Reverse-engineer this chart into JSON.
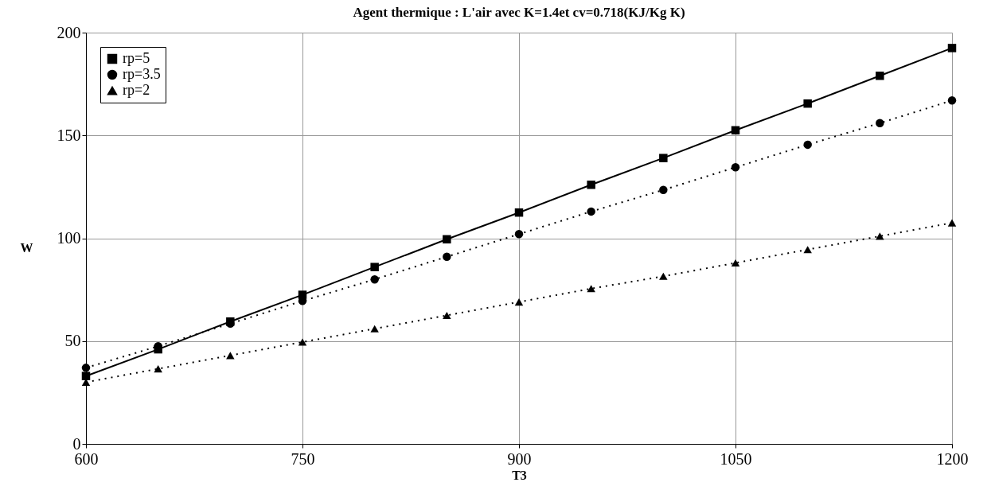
{
  "chart_data": {
    "type": "line",
    "title": "Agent thermique : L'air avec K=1.4et cv=0.718(KJ/Kg K)",
    "xlabel": "T3",
    "ylabel": "W",
    "x": [
      600,
      650,
      700,
      750,
      800,
      850,
      900,
      950,
      1000,
      1050,
      1100,
      1150,
      1200
    ],
    "series": [
      {
        "name": "rp=5",
        "color": "#000000",
        "marker": "square",
        "line_style": "solid",
        "values": [
          33,
          46,
          59.5,
          72.5,
          86,
          99.5,
          112.5,
          126,
          139,
          152.5,
          165.5,
          179,
          192.5
        ]
      },
      {
        "name": "rp=3.5",
        "color": "#000000",
        "marker": "circle",
        "line_style": "dotted",
        "values": [
          37,
          47.5,
          58.5,
          69.5,
          80,
          91,
          102,
          113,
          123.5,
          134.5,
          145.5,
          156,
          167
        ]
      },
      {
        "name": "rp=2",
        "color": "#000000",
        "marker": "triangle",
        "line_style": "dotted",
        "values": [
          30,
          36.5,
          43,
          49.5,
          56,
          62.5,
          69,
          75.5,
          81.5,
          88,
          94.5,
          101,
          107.5
        ]
      }
    ],
    "xlim": [
      600,
      1200
    ],
    "xticks": [
      600,
      750,
      900,
      1050,
      1200
    ],
    "ylim": [
      0,
      200
    ],
    "yticks": [
      0,
      50,
      100,
      150,
      200
    ],
    "grid": true,
    "legend": "top left"
  }
}
